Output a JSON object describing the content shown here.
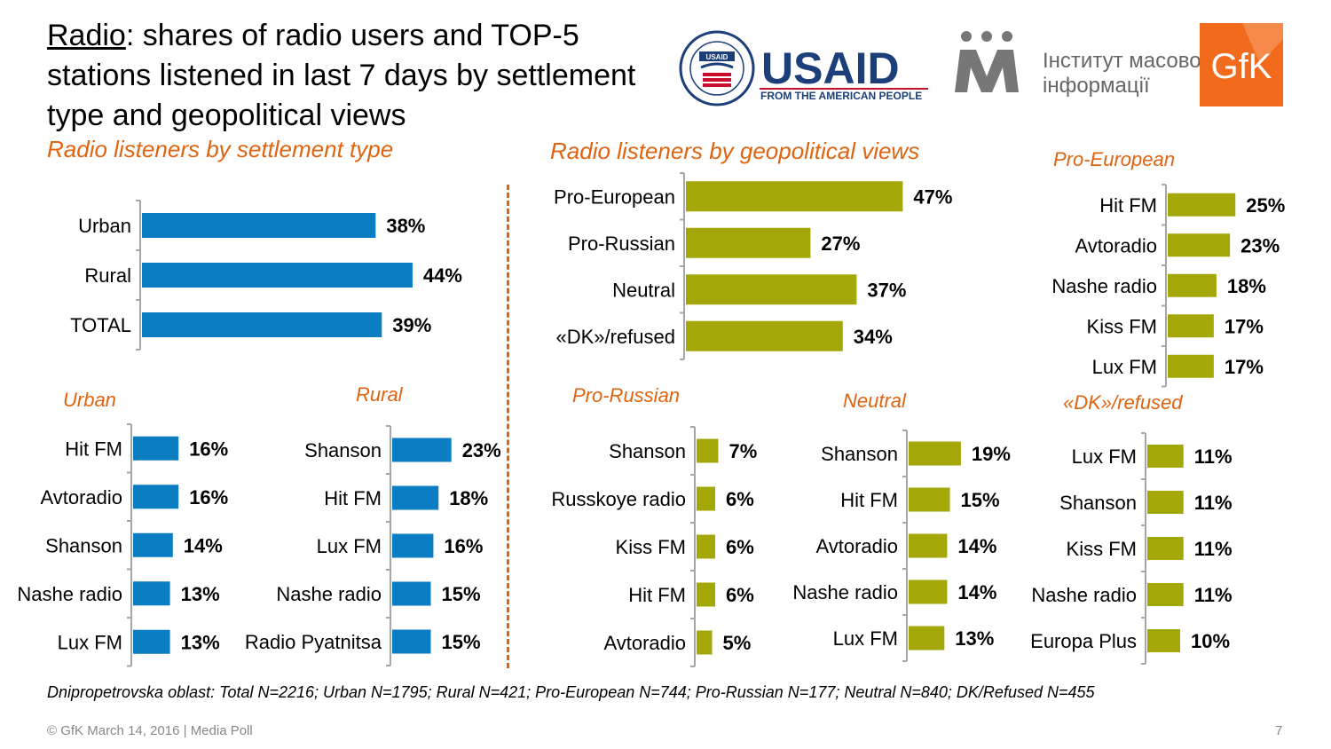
{
  "title": {
    "underlined": "Radio",
    "rest": ": shares of radio users and TOP-5 stations listened in last 7 days by settlement type and geopolitical views"
  },
  "logos": {
    "usaid_name": "USAID",
    "usaid_tagline": "FROM THE AMERICAN PEOPLE",
    "usaid_seal_text": "UNITED STATES AGENCY · INTERNATIONAL DEVELOPMENT",
    "usaid_seal_inner": "USAID",
    "imi_text_line1": "Інститут масової",
    "imi_text_line2": "інформації",
    "gfk_text": "GfK"
  },
  "colors": {
    "blue": "#0a7dc3",
    "olive": "#a3a808",
    "orange": "#e0640f",
    "axis": "#a6a6a6"
  },
  "charts": {
    "settlement": {
      "title": "Radio listeners by settlement type"
    },
    "geo": {
      "title": "Radio listeners by geopolitical views"
    }
  },
  "chart_data": [
    {
      "id": "settlement",
      "type": "bar",
      "orientation": "horizontal",
      "color": "blue",
      "categories": [
        "Urban",
        "Rural",
        "TOTAL"
      ],
      "values": [
        38,
        44,
        39
      ],
      "unit": "%"
    },
    {
      "id": "urban",
      "title": "Urban",
      "type": "bar",
      "orientation": "horizontal",
      "color": "blue",
      "categories": [
        "Hit FM",
        "Avtoradio",
        "Shanson",
        "Nashe radio",
        "Lux FM"
      ],
      "values": [
        16,
        16,
        14,
        13,
        13
      ],
      "unit": "%"
    },
    {
      "id": "rural",
      "title": "Rural",
      "type": "bar",
      "orientation": "horizontal",
      "color": "blue",
      "categories": [
        "Shanson",
        "Hit FM",
        "Lux FM",
        "Nashe radio",
        "Radio Pyatnitsa"
      ],
      "values": [
        23,
        18,
        16,
        15,
        15
      ],
      "unit": "%"
    },
    {
      "id": "geo",
      "type": "bar",
      "orientation": "horizontal",
      "color": "olive",
      "categories": [
        "Pro-European",
        "Pro-Russian",
        "Neutral",
        "«DK»/refused"
      ],
      "values": [
        47,
        27,
        37,
        34
      ],
      "unit": "%"
    },
    {
      "id": "pro_european",
      "title": "Pro-European",
      "type": "bar",
      "orientation": "horizontal",
      "color": "olive",
      "categories": [
        "Hit FM",
        "Avtoradio",
        "Nashe radio",
        "Kiss FM",
        "Lux FM"
      ],
      "values": [
        25,
        23,
        18,
        17,
        17
      ],
      "unit": "%"
    },
    {
      "id": "pro_russian",
      "title": "Pro-Russian",
      "type": "bar",
      "orientation": "horizontal",
      "color": "olive",
      "categories": [
        "Shanson",
        "Russkoye radio",
        "Kiss FM",
        "Hit FM",
        "Avtoradio"
      ],
      "values": [
        7,
        6,
        6,
        6,
        5
      ],
      "unit": "%"
    },
    {
      "id": "neutral",
      "title": "Neutral",
      "type": "bar",
      "orientation": "horizontal",
      "color": "olive",
      "categories": [
        "Shanson",
        "Hit FM",
        "Avtoradio",
        "Nashe radio",
        "Lux FM"
      ],
      "values": [
        19,
        15,
        14,
        14,
        13
      ],
      "unit": "%"
    },
    {
      "id": "dk_refused",
      "title": "«DK»/refused",
      "type": "bar",
      "orientation": "horizontal",
      "color": "olive",
      "categories": [
        "Lux FM",
        "Shanson",
        "Kiss FM",
        "Nashe radio",
        "Europa Plus"
      ],
      "values": [
        11,
        11,
        11,
        11,
        10
      ],
      "unit": "%"
    }
  ],
  "note": "Dnipropetrovska oblast: Total N=2216; Urban N=1795; Rural N=421; Pro-European N=744; Pro-Russian N=177; Neutral N=840; DK/Refused N=455",
  "footer": "© GfK March 14, 2016 | Media Poll",
  "page_number": "7"
}
